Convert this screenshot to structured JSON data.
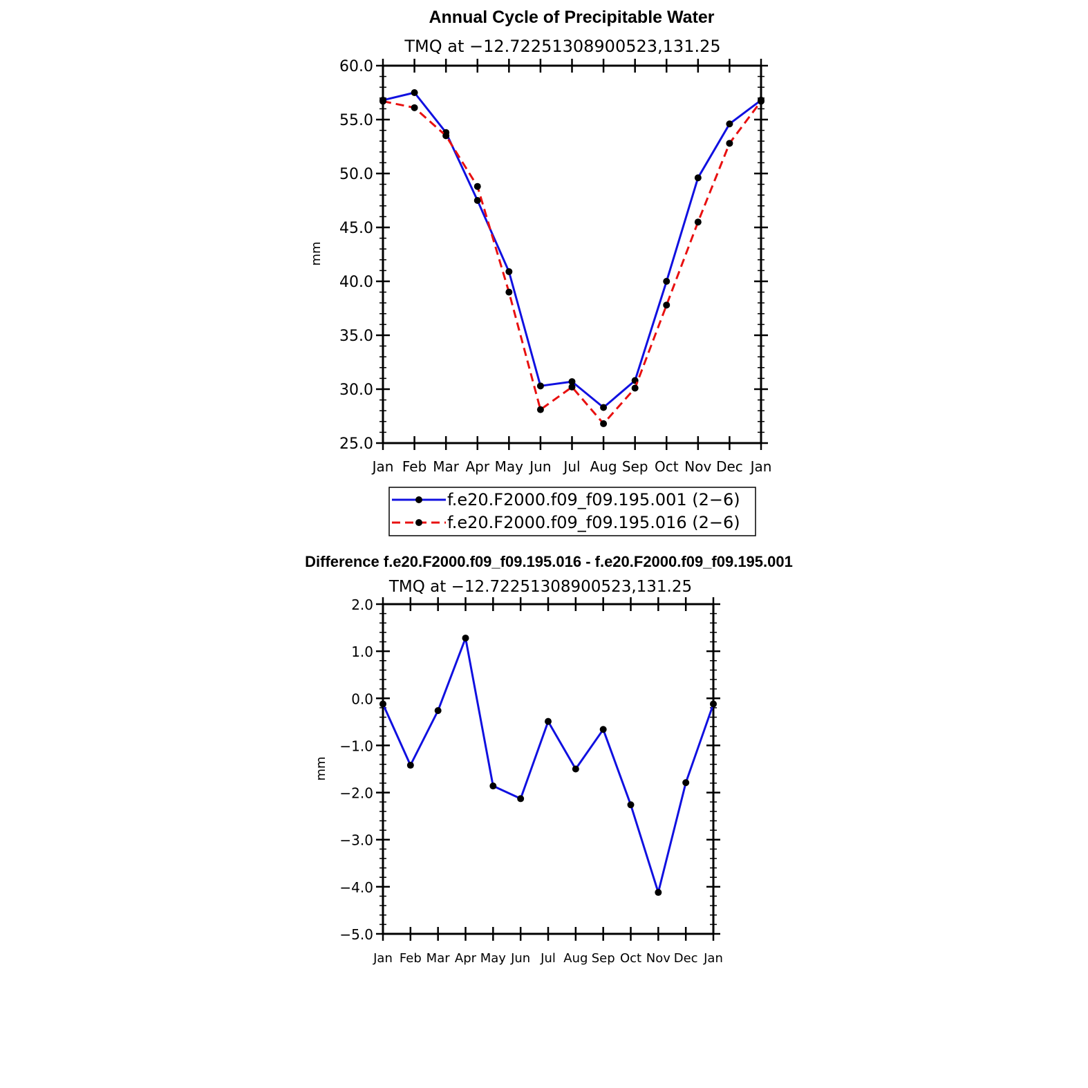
{
  "chart_data": [
    {
      "type": "line",
      "title": "Annual Cycle of Precipitable Water",
      "subtitle": "TMQ  at  −12.72251308900523,131.25",
      "ylabel": "mm",
      "xlabel": "",
      "categories": [
        "Jan",
        "Feb",
        "Mar",
        "Apr",
        "May",
        "Jun",
        "Jul",
        "Aug",
        "Sep",
        "Oct",
        "Nov",
        "Dec",
        "Jan"
      ],
      "ylim": [
        25.0,
        60.0
      ],
      "yticks": [
        "25.0",
        "30.0",
        "35.0",
        "40.0",
        "45.0",
        "50.0",
        "55.0",
        "60.0"
      ],
      "legend_position": "bottom",
      "series": [
        {
          "name": "f.e20.F2000.f09_f09.195.001 (2−6)",
          "color": "#1010e0",
          "style": "solid",
          "values": [
            56.8,
            57.5,
            53.8,
            47.5,
            40.9,
            30.3,
            30.7,
            28.3,
            30.8,
            40.0,
            49.6,
            54.6,
            56.8
          ]
        },
        {
          "name": "f.e20.F2000.f09_f09.195.016 (2−6)",
          "color": "#e81010",
          "style": "dashed",
          "values": [
            56.7,
            56.1,
            53.5,
            48.8,
            39.0,
            28.1,
            30.2,
            26.8,
            30.1,
            37.8,
            45.5,
            52.8,
            56.7
          ]
        }
      ]
    },
    {
      "type": "line",
      "title": "Difference f.e20.F2000.f09_f09.195.016 - f.e20.F2000.f09_f09.195.001",
      "subtitle": "TMQ  at  −12.72251308900523,131.25",
      "ylabel": "mm",
      "xlabel": "",
      "categories": [
        "Jan",
        "Feb",
        "Mar",
        "Apr",
        "May",
        "Jun",
        "Jul",
        "Aug",
        "Sep",
        "Oct",
        "Nov",
        "Dec",
        "Jan"
      ],
      "ylim": [
        -5.0,
        2.0
      ],
      "yticks": [
        "−5.0",
        "−4.0",
        "−3.0",
        "−2.0",
        "−1.0",
        "0.0",
        "1.0",
        "2.0"
      ],
      "series": [
        {
          "color": "#1010e0",
          "style": "solid",
          "values": [
            -0.12,
            -1.42,
            -0.26,
            1.28,
            -1.86,
            -2.13,
            -0.49,
            -1.5,
            -0.66,
            -2.26,
            -4.12,
            -1.79,
            -0.12
          ]
        }
      ]
    }
  ]
}
